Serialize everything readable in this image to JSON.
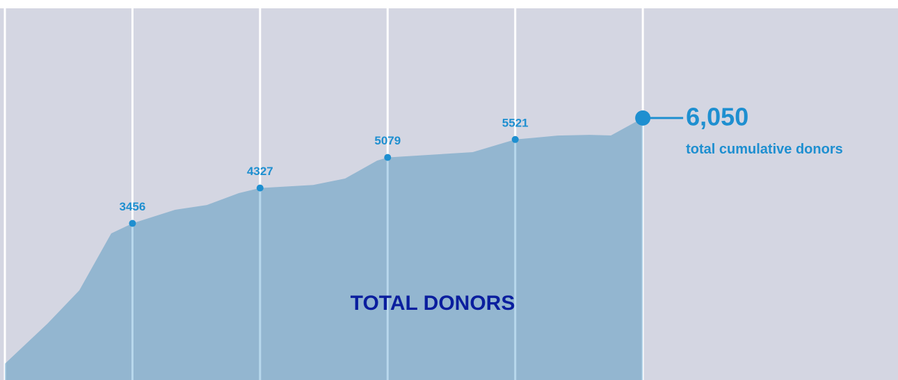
{
  "chart_data": {
    "type": "area",
    "title": "TOTAL DONORS",
    "x": [
      0,
      4,
      7,
      10,
      12,
      16,
      19,
      22,
      24,
      29,
      32,
      35,
      36,
      44,
      48,
      52,
      55,
      57,
      60
    ],
    "values": [
      0,
      985,
      1806,
      3208,
      3456,
      3790,
      3909,
      4200,
      4327,
      4400,
      4559,
      5000,
      5079,
      5209,
      5521,
      5619,
      5636,
      5620,
      6050
    ],
    "labeled": [
      4,
      8,
      12,
      14
    ],
    "end_label": "6,050",
    "end_caption": "total cumulative donors",
    "color": "#93b6d0",
    "marker_color": "#1e8fd0",
    "xlim": [
      0,
      84
    ],
    "ylim": [
      -400,
      8750
    ],
    "xticks": [
      0,
      12,
      24,
      36,
      48,
      60
    ],
    "grid": true
  }
}
